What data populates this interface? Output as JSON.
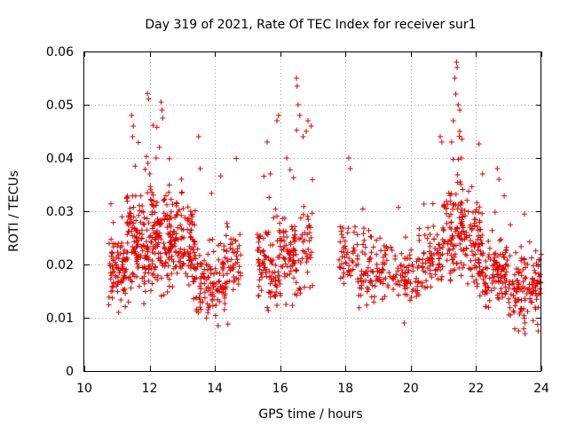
{
  "chart_data": {
    "type": "scatter",
    "title": "Day 319 of 2021, Rate Of TEC Index for receiver sur1",
    "xlabel": "GPS time / hours",
    "ylabel": "ROTI / TECUs",
    "xlim": [
      10,
      24
    ],
    "ylim": [
      0,
      0.06
    ],
    "xticks": [
      10,
      12,
      14,
      16,
      18,
      20,
      22,
      24
    ],
    "xtick_labels": [
      "10",
      "12",
      "14",
      "16",
      "18",
      "20",
      "22",
      "24"
    ],
    "yticks": [
      0,
      0.01,
      0.02,
      0.03,
      0.04,
      0.05,
      0.06
    ],
    "ytick_labels": [
      "0",
      "0.01",
      "0.02",
      "0.03",
      "0.04",
      "0.05",
      "0.06"
    ],
    "grid": true,
    "marker": "+",
    "color": "#e00000",
    "series": [
      {
        "name": "sur1",
        "clusters": [
          {
            "x_range": [
              10.75,
              11.3
            ],
            "y_center": 0.019,
            "y_spread": 0.004,
            "count": 90
          },
          {
            "x_range": [
              11.3,
              12.0
            ],
            "y_center": 0.024,
            "y_spread": 0.006,
            "count": 140
          },
          {
            "x_range": [
              12.0,
              12.7
            ],
            "y_center": 0.024,
            "y_spread": 0.006,
            "count": 150
          },
          {
            "x_range": [
              12.7,
              13.4
            ],
            "y_center": 0.024,
            "y_spread": 0.005,
            "count": 110
          },
          {
            "x_range": [
              13.3,
              13.9
            ],
            "y_center": 0.017,
            "y_spread": 0.004,
            "count": 70
          },
          {
            "x_range": [
              13.9,
              14.4
            ],
            "y_center": 0.016,
            "y_spread": 0.004,
            "count": 55
          },
          {
            "x_range": [
              14.2,
              14.8
            ],
            "y_center": 0.021,
            "y_spread": 0.004,
            "count": 55
          },
          {
            "x_range": [
              15.3,
              15.9
            ],
            "y_center": 0.019,
            "y_spread": 0.005,
            "count": 85
          },
          {
            "x_range": [
              15.9,
              16.5
            ],
            "y_center": 0.022,
            "y_spread": 0.005,
            "count": 80
          },
          {
            "x_range": [
              16.3,
              17.0
            ],
            "y_center": 0.024,
            "y_spread": 0.006,
            "count": 55
          },
          {
            "x_range": [
              17.8,
              18.4
            ],
            "y_center": 0.022,
            "y_spread": 0.004,
            "count": 55
          },
          {
            "x_range": [
              18.4,
              19.4
            ],
            "y_center": 0.019,
            "y_spread": 0.004,
            "count": 95
          },
          {
            "x_range": [
              19.4,
              20.4
            ],
            "y_center": 0.018,
            "y_spread": 0.004,
            "count": 90
          },
          {
            "x_range": [
              20.4,
              21.0
            ],
            "y_center": 0.021,
            "y_spread": 0.004,
            "count": 65
          },
          {
            "x_range": [
              21.0,
              21.6
            ],
            "y_center": 0.027,
            "y_spread": 0.006,
            "count": 110
          },
          {
            "x_range": [
              21.6,
              22.2
            ],
            "y_center": 0.024,
            "y_spread": 0.005,
            "count": 95
          },
          {
            "x_range": [
              22.2,
              23.0
            ],
            "y_center": 0.018,
            "y_spread": 0.004,
            "count": 110
          },
          {
            "x_range": [
              23.0,
              24.0
            ],
            "y_center": 0.016,
            "y_spread": 0.004,
            "count": 130
          }
        ],
        "peaks": [
          {
            "x": 11.45,
            "y": 0.048
          },
          {
            "x": 11.5,
            "y": 0.046
          },
          {
            "x": 11.48,
            "y": 0.044
          },
          {
            "x": 12.35,
            "y": 0.0505
          },
          {
            "x": 12.38,
            "y": 0.049
          },
          {
            "x": 12.4,
            "y": 0.0475
          },
          {
            "x": 12.3,
            "y": 0.042
          },
          {
            "x": 13.5,
            "y": 0.044
          },
          {
            "x": 13.55,
            "y": 0.038
          },
          {
            "x": 11.95,
            "y": 0.039
          },
          {
            "x": 12.0,
            "y": 0.037
          },
          {
            "x": 12.2,
            "y": 0.04
          },
          {
            "x": 15.95,
            "y": 0.048
          },
          {
            "x": 15.9,
            "y": 0.047
          },
          {
            "x": 15.6,
            "y": 0.043
          },
          {
            "x": 16.5,
            "y": 0.055
          },
          {
            "x": 16.52,
            "y": 0.0535
          },
          {
            "x": 16.55,
            "y": 0.05
          },
          {
            "x": 16.6,
            "y": 0.048
          },
          {
            "x": 16.85,
            "y": 0.047
          },
          {
            "x": 16.95,
            "y": 0.046
          },
          {
            "x": 16.8,
            "y": 0.045
          },
          {
            "x": 16.7,
            "y": 0.044
          },
          {
            "x": 16.2,
            "y": 0.04
          },
          {
            "x": 18.1,
            "y": 0.04
          },
          {
            "x": 18.15,
            "y": 0.038
          },
          {
            "x": 21.4,
            "y": 0.058
          },
          {
            "x": 21.42,
            "y": 0.057
          },
          {
            "x": 21.35,
            "y": 0.055
          },
          {
            "x": 21.38,
            "y": 0.052
          },
          {
            "x": 21.45,
            "y": 0.05
          },
          {
            "x": 21.5,
            "y": 0.049
          },
          {
            "x": 21.3,
            "y": 0.047
          },
          {
            "x": 21.25,
            "y": 0.043
          },
          {
            "x": 20.9,
            "y": 0.044
          },
          {
            "x": 20.95,
            "y": 0.043
          },
          {
            "x": 21.5,
            "y": 0.045
          },
          {
            "x": 21.55,
            "y": 0.04
          },
          {
            "x": 22.65,
            "y": 0.038
          },
          {
            "x": 22.7,
            "y": 0.036
          },
          {
            "x": 22.2,
            "y": 0.037
          },
          {
            "x": 14.1,
            "y": 0.0085
          },
          {
            "x": 19.8,
            "y": 0.009
          },
          {
            "x": 23.5,
            "y": 0.007
          },
          {
            "x": 23.3,
            "y": 0.0075
          },
          {
            "x": 23.9,
            "y": 0.0075
          },
          {
            "x": 11.05,
            "y": 0.011
          }
        ]
      }
    ]
  }
}
